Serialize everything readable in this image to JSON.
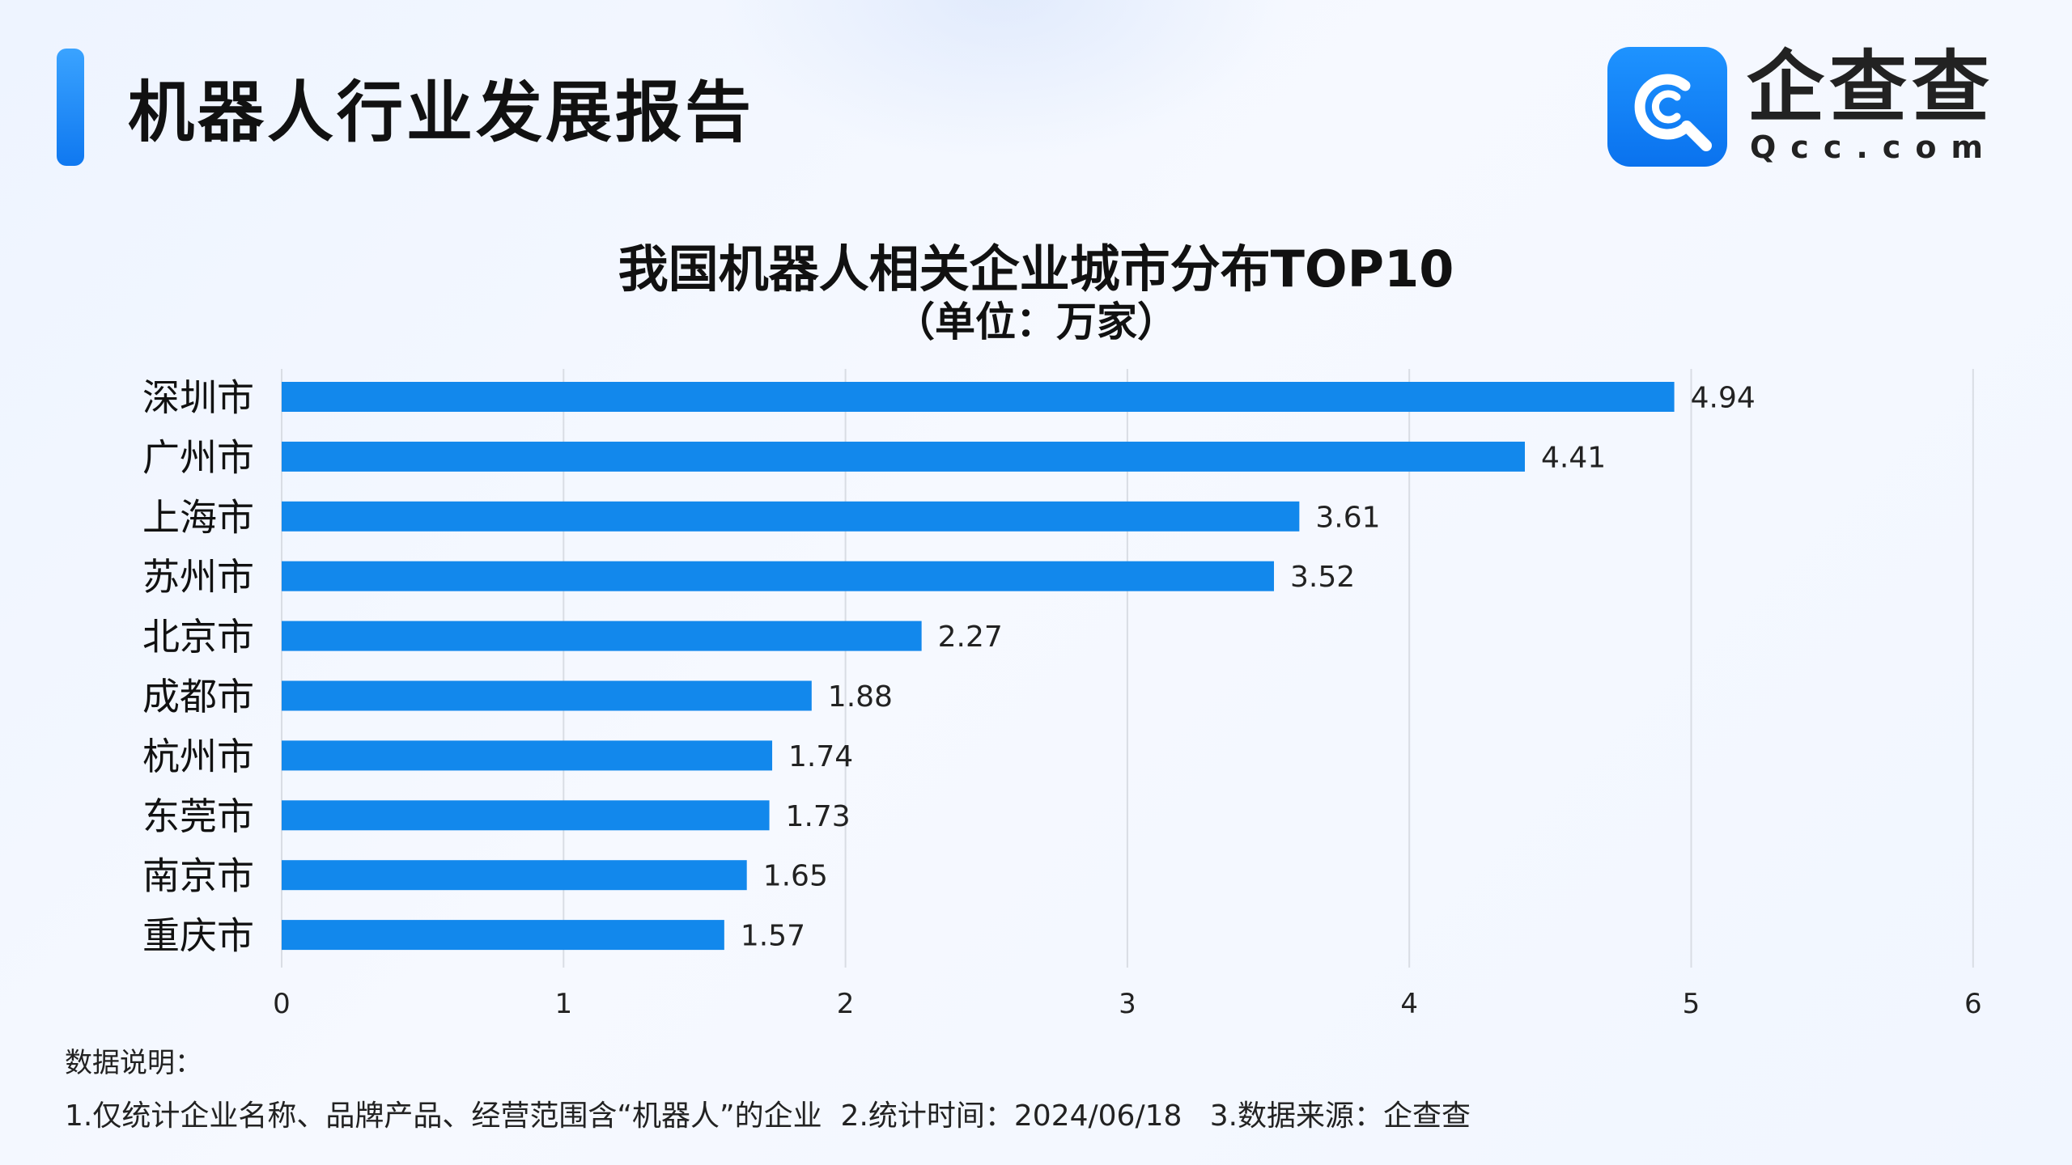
{
  "header": {
    "title": "机器人行业发展报告",
    "logo_name": "企查查",
    "logo_domain": "Qcc.com"
  },
  "chart_data": {
    "type": "bar",
    "orientation": "horizontal",
    "title": "我国机器人相关企业城市分布TOP10",
    "subtitle": "（单位：万家）",
    "categories": [
      "深圳市",
      "广州市",
      "上海市",
      "苏州市",
      "北京市",
      "成都市",
      "杭州市",
      "东莞市",
      "南京市",
      "重庆市"
    ],
    "values": [
      4.94,
      4.41,
      3.61,
      3.52,
      2.27,
      1.88,
      1.74,
      1.73,
      1.65,
      1.57
    ],
    "value_labels": [
      "4.94",
      "4.41",
      "3.61",
      "3.52",
      "2.27",
      "1.88",
      "1.74",
      "1.73",
      "1.65",
      "1.57"
    ],
    "xlim": [
      0,
      6
    ],
    "x_ticks": [
      "0",
      "1",
      "2",
      "3",
      "4",
      "5",
      "6"
    ],
    "grid": "vertical",
    "bar_color": "#1288ec",
    "grid_color": "#d9dde4"
  },
  "notes": {
    "title": "数据说明：",
    "line": "1.仅统计企业名称、品牌产品、经营范围含“机器人”的企业  2.统计时间：2024/06/18   3.数据来源：企查查"
  },
  "colors": {
    "accent": "#1288ec"
  },
  "icons": {
    "logo": "qcc-magnifier-logo-icon"
  }
}
